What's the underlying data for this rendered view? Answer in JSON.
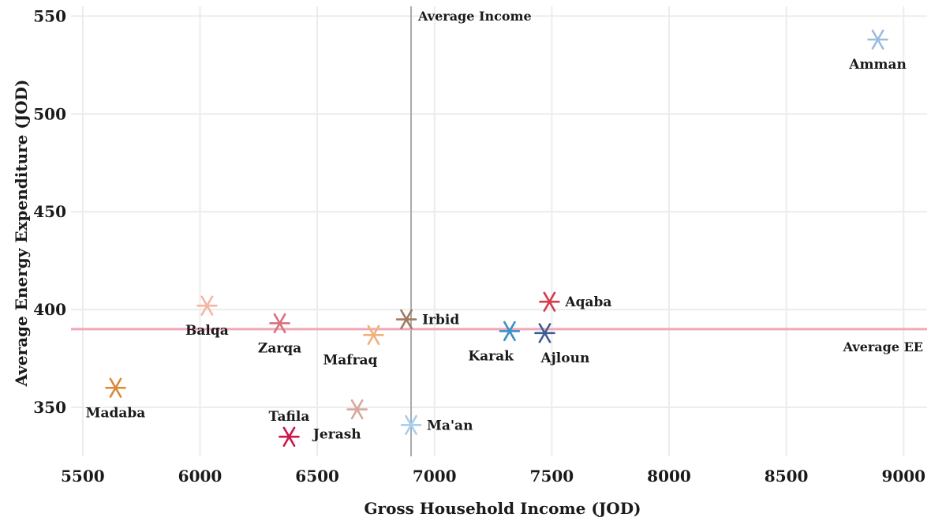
{
  "chart_data": {
    "type": "scatter",
    "title": "",
    "xlabel": "Gross Household Income (JOD)",
    "ylabel": "Average Energy Expenditure (JOD)",
    "xlim": [
      5450,
      9100
    ],
    "ylim": [
      325,
      555
    ],
    "xticks": [
      5500,
      6000,
      6500,
      7000,
      7500,
      8000,
      8500,
      9000
    ],
    "yticks": [
      350,
      400,
      450,
      500,
      550
    ],
    "grid": true,
    "marker": "asterisk",
    "points": [
      {
        "label": "Amman",
        "x": 8890,
        "y": 538,
        "color": "#9dbbe0",
        "label_pos": "below"
      },
      {
        "label": "Aqaba",
        "x": 7490,
        "y": 404,
        "color": "#d83a4a",
        "label_pos": "right"
      },
      {
        "label": "Balqa",
        "x": 6030,
        "y": 402,
        "color": "#f4b6a4",
        "label_pos": "below"
      },
      {
        "label": "Irbid",
        "x": 6880,
        "y": 395,
        "color": "#a07a62",
        "label_pos": "right"
      },
      {
        "label": "Zarqa",
        "x": 6340,
        "y": 393,
        "color": "#d9707e",
        "label_pos": "below"
      },
      {
        "label": "Karak",
        "x": 7320,
        "y": 389,
        "color": "#3a8fc8",
        "label_pos": "below-left"
      },
      {
        "label": "Ajloun",
        "x": 7470,
        "y": 388,
        "color": "#3d5c96",
        "label_pos": "below-right"
      },
      {
        "label": "Mafraq",
        "x": 6740,
        "y": 387,
        "color": "#f0b07a",
        "label_pos": "below-left"
      },
      {
        "label": "Madaba",
        "x": 5640,
        "y": 360,
        "color": "#d98a3a",
        "label_pos": "below"
      },
      {
        "label": "Jerash",
        "x": 6670,
        "y": 349,
        "color": "#d8a89c",
        "label_pos": "below-left"
      },
      {
        "label": "Ma'an",
        "x": 6900,
        "y": 341,
        "color": "#a9cff0",
        "label_pos": "right"
      },
      {
        "label": "Tafila",
        "x": 6380,
        "y": 335,
        "color": "#c81848",
        "label_pos": "above"
      }
    ],
    "reference_lines": [
      {
        "orientation": "vertical",
        "value": 6900,
        "label": "Average Income",
        "color": "#aaaaaa"
      },
      {
        "orientation": "horizontal",
        "value": 390,
        "label": "Average EE",
        "color": "#f0a8b8"
      }
    ]
  }
}
